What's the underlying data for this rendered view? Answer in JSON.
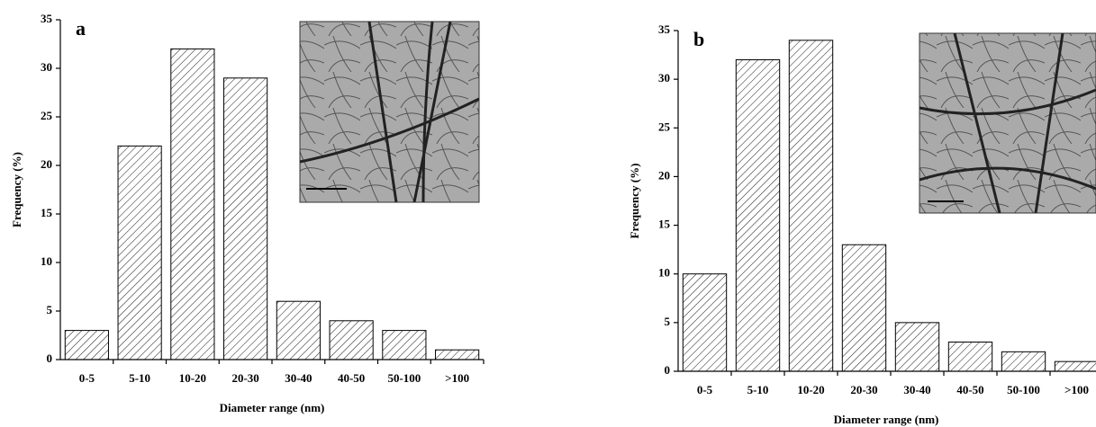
{
  "chart_data": [
    {
      "type": "bar",
      "label": "a",
      "x_label": "Diameter range (nm)",
      "y_label": "Frequency (%)",
      "categories": [
        "0-5",
        "5-10",
        "10-20",
        "20-30",
        "30-40",
        "40-50",
        "50-100",
        ">100"
      ],
      "values": [
        3,
        22,
        32,
        29,
        6,
        4,
        3,
        1
      ],
      "ylim": [
        0,
        35
      ],
      "yticks": [
        0,
        5,
        10,
        15,
        20,
        25,
        30,
        35
      ],
      "color": "#000000"
    },
    {
      "type": "bar",
      "label": "b",
      "x_label": "Diameter range (nm)",
      "y_label": "Frequency (%)",
      "categories": [
        "0-5",
        "5-10",
        "10-20",
        "20-30",
        "30-40",
        "40-50",
        "50-100",
        ">100"
      ],
      "values": [
        10,
        32,
        34,
        13,
        5,
        3,
        2,
        1
      ],
      "ylim": [
        0,
        35
      ],
      "yticks": [
        0,
        5,
        10,
        15,
        20,
        25,
        30,
        35
      ],
      "color": "#000000"
    }
  ]
}
